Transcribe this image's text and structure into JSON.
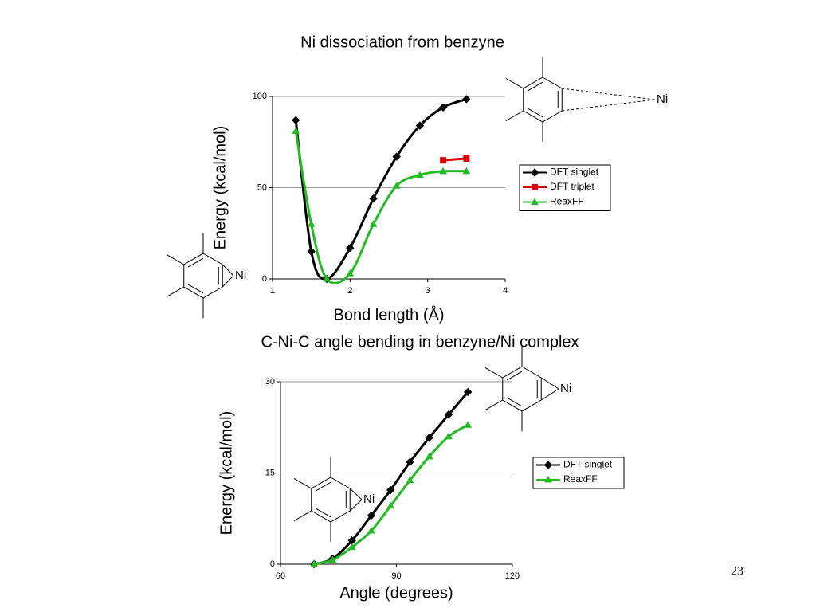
{
  "chart_data": [
    {
      "type": "line",
      "title": "Ni dissociation from benzyne",
      "x_label": "Bond length (Å)",
      "y_label": "Energy (kcal/mol)",
      "xlim": [
        1,
        4
      ],
      "xticks": [
        1,
        2,
        3,
        4
      ],
      "ylim": [
        0,
        100
      ],
      "yticks": [
        0,
        50,
        100
      ],
      "grid": true,
      "legend": "right",
      "annotations": [
        "Ni",
        "Ni"
      ],
      "series": [
        {
          "name": "DFT singlet",
          "color": "#000000",
          "marker": "diamond",
          "x": [
            1.3,
            1.5,
            1.7,
            2.0,
            2.3,
            2.6,
            2.9,
            3.2,
            3.5
          ],
          "values": [
            87,
            15,
            0,
            17,
            44,
            67,
            84,
            94,
            98.5
          ]
        },
        {
          "name": "DFT triplet",
          "color": "#dd0000",
          "marker": "square",
          "x": [
            3.2,
            3.5
          ],
          "values": [
            65,
            66
          ]
        },
        {
          "name": "ReaxFF",
          "color": "#22bb22",
          "marker": "triangle",
          "x": [
            1.3,
            1.5,
            1.7,
            2.0,
            2.3,
            2.6,
            2.9,
            3.2,
            3.5
          ],
          "values": [
            81,
            30,
            0,
            3,
            30,
            51,
            57,
            59,
            59
          ]
        }
      ]
    },
    {
      "type": "line",
      "title": "C-Ni-C angle bending in benzyne/Ni complex",
      "x_label": "Angle (degrees)",
      "y_label": "Energy (kcal/mol)",
      "xlim": [
        60,
        120
      ],
      "xticks": [
        60,
        90,
        120
      ],
      "ylim": [
        0,
        30
      ],
      "yticks": [
        0,
        15,
        30
      ],
      "grid": true,
      "legend": "right",
      "annotations": [
        "Ni",
        "Ni"
      ],
      "series": [
        {
          "name": "DFT singlet",
          "color": "#000000",
          "marker": "diamond",
          "x": [
            68.7,
            73.5,
            78.5,
            83.5,
            88.5,
            93.5,
            98.5,
            103.5,
            108.5
          ],
          "values": [
            0,
            0.9,
            3.9,
            8,
            12.2,
            16.8,
            20.8,
            24.6,
            28.3
          ]
        },
        {
          "name": "ReaxFF",
          "color": "#22bb22",
          "marker": "triangle",
          "x": [
            68.7,
            73.5,
            78.5,
            83.5,
            88.5,
            93.5,
            98.5,
            103.5,
            108.5
          ],
          "values": [
            0,
            0.7,
            2.8,
            5.5,
            9.6,
            13.8,
            17.7,
            21,
            22.9
          ]
        }
      ]
    }
  ],
  "page_number": "23"
}
